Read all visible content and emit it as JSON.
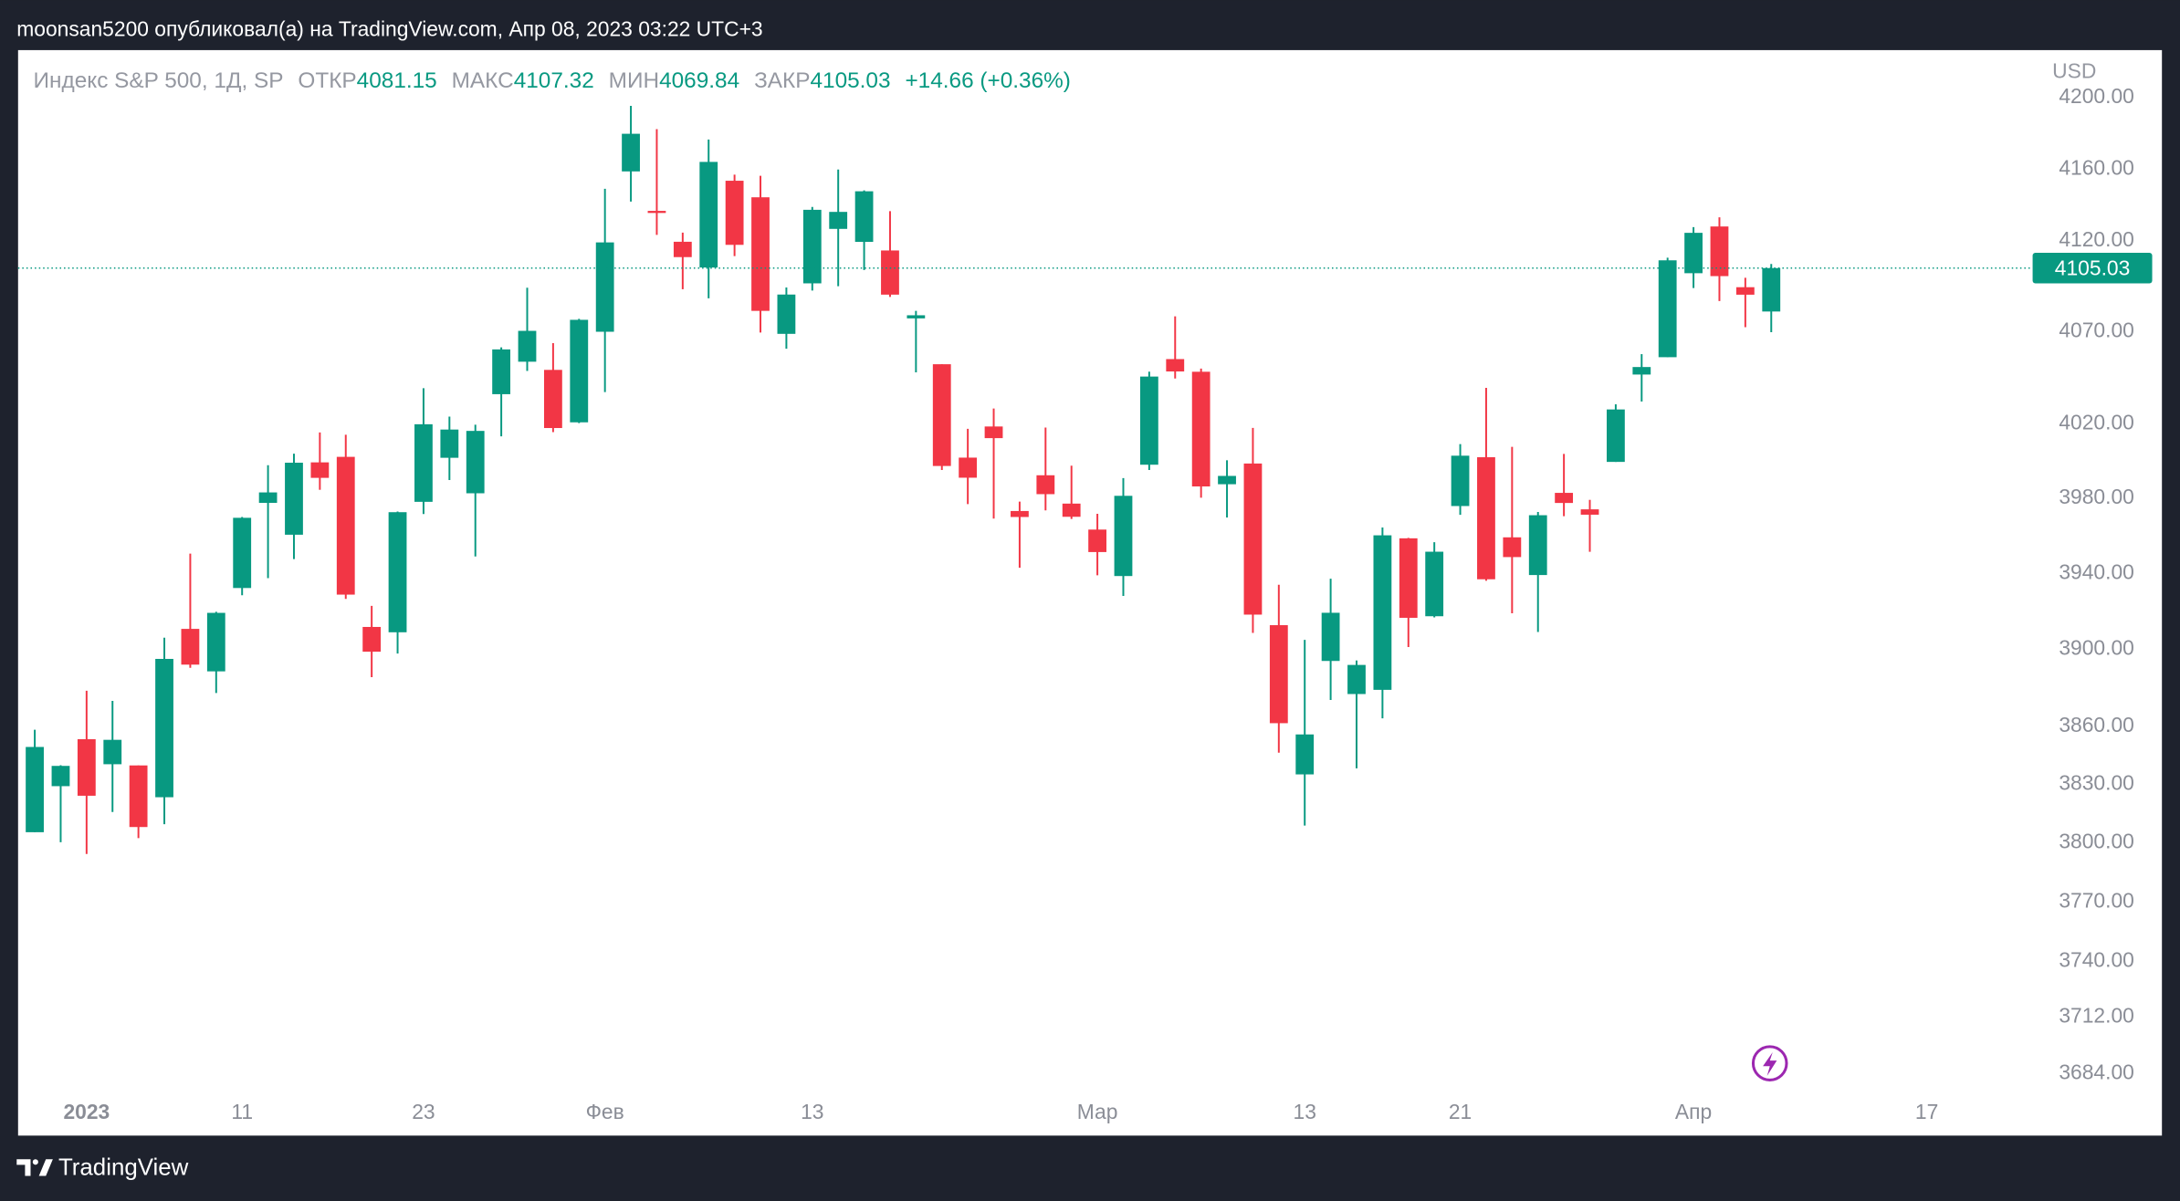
{
  "header": "moonsan5200 опубликовал(а) на TradingView.com, Апр 08, 2023 03:22 UTC+3",
  "footer": {
    "brand": "TradingView"
  },
  "chart_data": {
    "type": "candlestick",
    "title": "Индекс S&P 500, 1Д, SP",
    "legend_labels": {
      "open": "ОТКР",
      "high": "МАКС",
      "low": "МИН",
      "close": "ЗАКР"
    },
    "change_label": "+14.66 (+0.36%)",
    "currency": "USD",
    "up_color": "#089981",
    "down_color": "#f23645",
    "log_scale": true,
    "ylim": [
      3674,
      4227
    ],
    "yticks": [
      {
        "value": 4200,
        "label": "4200.00"
      },
      {
        "value": 4160,
        "label": "4160.00"
      },
      {
        "value": 4120,
        "label": "4120.00"
      },
      {
        "value": 4070,
        "label": "4070.00"
      },
      {
        "value": 4020,
        "label": "4020.00"
      },
      {
        "value": 3980,
        "label": "3980.00"
      },
      {
        "value": 3940,
        "label": "3940.00"
      },
      {
        "value": 3900,
        "label": "3900.00"
      },
      {
        "value": 3860,
        "label": "3860.00"
      },
      {
        "value": 3830,
        "label": "3830.00"
      },
      {
        "value": 3800,
        "label": "3800.00"
      },
      {
        "value": 3770,
        "label": "3770.00"
      },
      {
        "value": 3740,
        "label": "3740.00"
      },
      {
        "value": 3712,
        "label": "3712.00"
      },
      {
        "value": 3684,
        "label": "3684.00"
      }
    ],
    "categories": [
      null,
      null,
      "2023",
      null,
      null,
      null,
      null,
      null,
      "11",
      null,
      null,
      null,
      null,
      null,
      null,
      "23",
      null,
      null,
      null,
      null,
      null,
      null,
      "Фев",
      null,
      null,
      null,
      null,
      null,
      null,
      null,
      "13",
      null,
      null,
      null,
      null,
      null,
      null,
      null,
      null,
      null,
      null,
      "Мар",
      null,
      null,
      null,
      null,
      null,
      null,
      null,
      "13",
      null,
      null,
      null,
      null,
      null,
      "21",
      null,
      null,
      null,
      null,
      null,
      null,
      null,
      null,
      "Апр",
      null,
      null,
      null,
      null,
      null,
      null,
      null,
      null,
      "17",
      null,
      null,
      null,
      null
    ],
    "open": [
      3805.45,
      3829.06,
      3853.29,
      3840.36,
      3839.74,
      3823.37,
      3910.82,
      3888.57,
      3932.35,
      3977.57,
      3960.6,
      3999.28,
      4002.25,
      3911.84,
      3909.04,
      3978.14,
      4001.74,
      3982.71,
      4036.08,
      4053.72,
      4049.27,
      4020.85,
      4070.07,
      4158.68,
      4136.69,
      4119.57,
      4105.35,
      4153.47,
      4144.25,
      4068.92,
      4096.62,
      4126.7,
      4119.5,
      4114.75,
      4077.39,
      4052.35,
      4001.83,
      4018.6,
      3973.24,
      3992.36,
      3977.19,
      3963.34,
      3938.68,
      3998.02,
      4055.15,
      4048.26,
      3987.55,
      3998.66,
      3912.77,
      3835.12,
      3894.01,
      3876.74,
      3878.93,
      3958.69,
      3917.47,
      3975.89,
      4002.04,
      3959.21,
      3939.21,
      3982.93,
      3974.13,
      3999.53,
      4046.74,
      4056.18,
      4102.2,
      4128.03,
      4094.5,
      4081.15,
      null,
      null,
      null,
      null,
      null,
      null,
      null,
      null,
      null,
      null
    ],
    "high": [
      3858.19,
      3839.85,
      3878.46,
      3873.16,
      3839.74,
      3906.19,
      3950.57,
      3919.83,
      3970.07,
      3997.76,
      4003.95,
      4015.39,
      4014.16,
      3922.94,
      3972.96,
      4039.31,
      4023.92,
      4019.55,
      4061.57,
      4094.21,
      4063.85,
      4077.16,
      4148.95,
      4195.44,
      4182.36,
      4124.63,
      4176.54,
      4156.85,
      4156.23,
      4094.36,
      4138.9,
      4159.77,
      4148.11,
      4136.54,
      4081.51,
      4052.35,
      4017.37,
      4028.3,
      3978.25,
      4018.05,
      3997.5,
      3971.73,
      3990.84,
      4048.29,
      4078.49,
      4050.0,
      4000.41,
      4017.81,
      3934.05,
      3905.05,
      3937.29,
      3894.26,
      3964.46,
      3958.91,
      3956.62,
      4009.08,
      4039.49,
      4007.66,
      3972.74,
      4003.83,
      3979.2,
      4030.59,
      4057.85,
      4110.75,
      4127.66,
      4133.13,
      4099.69,
      4107.32,
      null,
      null,
      null,
      null,
      null,
      null,
      null,
      null,
      null,
      null
    ],
    "low": [
      3805.45,
      3800.34,
      3794.33,
      3815.77,
      3802.42,
      3809.56,
      3890.42,
      3877.29,
      3928.54,
      3937.56,
      3947.67,
      3984.57,
      3926.59,
      3885.54,
      3897.86,
      3971.64,
      3989.79,
      3949.06,
      4013.29,
      4048.7,
      4015.55,
      4020.44,
      4037.2,
      4141.88,
      4123.36,
      4093.38,
      4088.39,
      4111.67,
      4069.67,
      4060.79,
      4092.67,
      4095.01,
      4103.98,
      4089.17,
      4047.95,
      3995.19,
      3976.9,
      3969.19,
      3943.08,
      3973.55,
      3968.98,
      3939.05,
      3928.16,
      3995.17,
      4044.61,
      3980.31,
      3969.76,
      3908.7,
      3846.32,
      3808.86,
      3873.63,
      3838.24,
      3864.11,
      3901.27,
      3916.89,
      3971.19,
      3936.17,
      3919.05,
      3909.16,
      3970.49,
      3951.53,
      3999.53,
      4032.1,
      4056.18,
      4094.03,
      4086.87,
      4072.56,
      4069.84,
      null,
      null,
      null,
      null,
      null,
      null,
      null,
      null,
      null,
      null
    ],
    "close": [
      3849.28,
      3839.5,
      3824.14,
      3852.97,
      3808.1,
      3895.08,
      3892.09,
      3919.25,
      3969.61,
      3983.17,
      3999.09,
      3990.97,
      3928.86,
      3898.85,
      3972.61,
      4019.81,
      4016.95,
      4016.22,
      4060.43,
      4070.56,
      4017.77,
      4076.6,
      4119.21,
      4179.76,
      4136.48,
      4111.08,
      4164.0,
      4117.86,
      4081.5,
      4090.46,
      4137.29,
      4136.13,
      4147.6,
      4090.41,
      4079.09,
      3997.34,
      3991.05,
      4012.32,
      3970.04,
      3982.24,
      3970.15,
      3951.39,
      3981.35,
      4045.64,
      4048.42,
      3986.37,
      3992.01,
      3918.32,
      3861.59,
      3855.76,
      3919.29,
      3891.93,
      3960.28,
      3916.64,
      3951.57,
      4002.87,
      3936.97,
      3948.72,
      3970.99,
      3977.53,
      3971.27,
      4027.81,
      4050.83,
      4109.31,
      4124.51,
      4100.6,
      4090.38,
      4105.03,
      null,
      null,
      null,
      null,
      null,
      null,
      null,
      null,
      null,
      null
    ]
  }
}
